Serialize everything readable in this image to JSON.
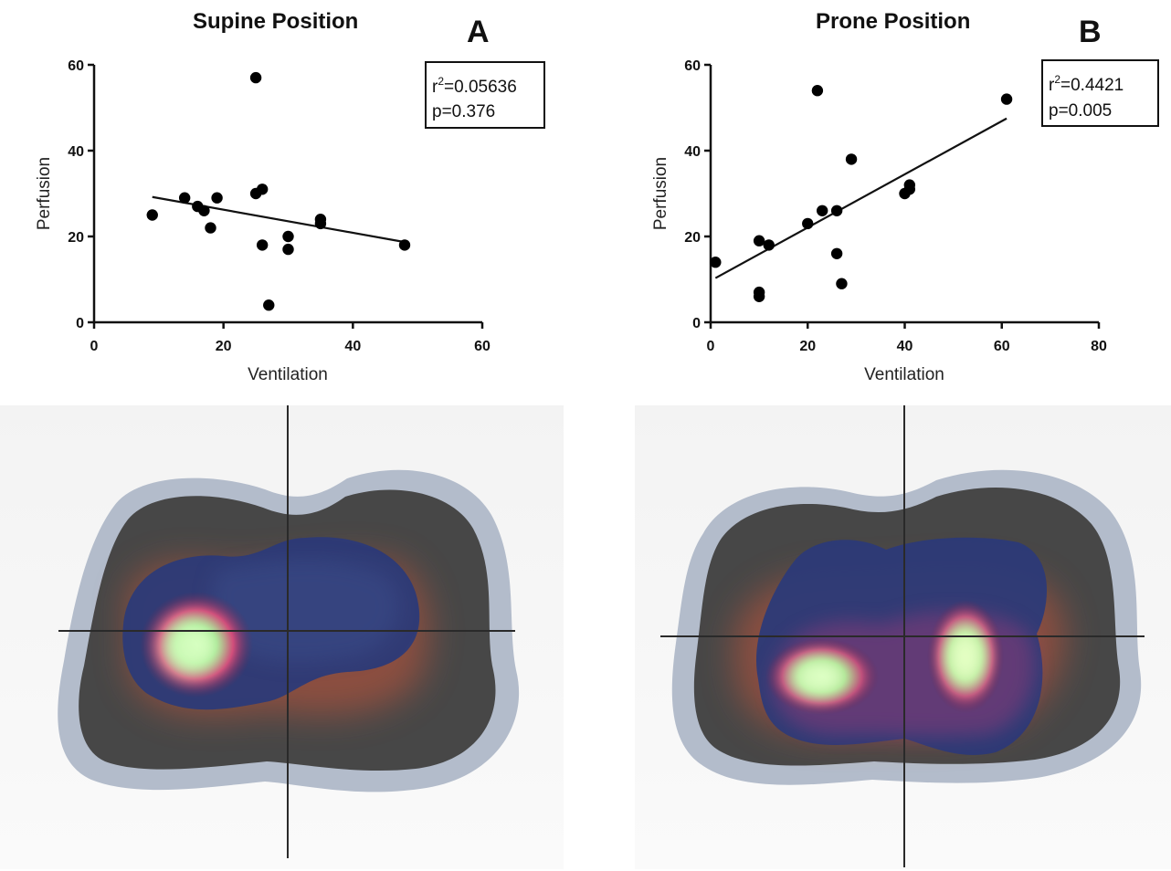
{
  "panels": [
    {
      "id": "A",
      "letter": "A",
      "chart_data": {
        "type": "scatter",
        "title": "Supine Position",
        "xlabel": "Ventilation",
        "ylabel": "Perfusion",
        "xlim": [
          0,
          60
        ],
        "ylim": [
          0,
          60
        ],
        "xticks": [
          0,
          20,
          40,
          60
        ],
        "yticks": [
          0,
          20,
          40,
          60
        ],
        "grid": false,
        "points": [
          {
            "x": 9,
            "y": 25
          },
          {
            "x": 14,
            "y": 29
          },
          {
            "x": 16,
            "y": 27
          },
          {
            "x": 17,
            "y": 26
          },
          {
            "x": 18,
            "y": 22
          },
          {
            "x": 19,
            "y": 29
          },
          {
            "x": 25,
            "y": 57
          },
          {
            "x": 25,
            "y": 30
          },
          {
            "x": 26,
            "y": 31
          },
          {
            "x": 26,
            "y": 18
          },
          {
            "x": 27,
            "y": 4
          },
          {
            "x": 30,
            "y": 20
          },
          {
            "x": 30,
            "y": 17
          },
          {
            "x": 35,
            "y": 24
          },
          {
            "x": 35,
            "y": 23
          },
          {
            "x": 48,
            "y": 18
          }
        ],
        "regression": {
          "x": [
            9,
            48
          ],
          "y": [
            29.2,
            18.7
          ]
        },
        "stats": {
          "r2_prefix": "r",
          "r2_exp": "2",
          "r2_value": "=0.05636",
          "p": "p=0.376"
        },
        "stats_placement": "top-right"
      }
    },
    {
      "id": "B",
      "letter": "B",
      "chart_data": {
        "type": "scatter",
        "title": "Prone Position",
        "xlabel": "Ventilation",
        "ylabel": "Perfusion",
        "xlim": [
          0,
          80
        ],
        "ylim": [
          0,
          60
        ],
        "xticks": [
          0,
          20,
          40,
          60,
          80
        ],
        "yticks": [
          0,
          20,
          40,
          60
        ],
        "grid": false,
        "points": [
          {
            "x": 1,
            "y": 14
          },
          {
            "x": 10,
            "y": 19
          },
          {
            "x": 10,
            "y": 7
          },
          {
            "x": 10,
            "y": 6
          },
          {
            "x": 12,
            "y": 18
          },
          {
            "x": 20,
            "y": 23
          },
          {
            "x": 22,
            "y": 54
          },
          {
            "x": 23,
            "y": 26
          },
          {
            "x": 26,
            "y": 26
          },
          {
            "x": 26,
            "y": 16
          },
          {
            "x": 27,
            "y": 9
          },
          {
            "x": 29,
            "y": 38
          },
          {
            "x": 40,
            "y": 30
          },
          {
            "x": 41,
            "y": 32
          },
          {
            "x": 41,
            "y": 31
          },
          {
            "x": 61,
            "y": 52
          }
        ],
        "regression": {
          "x": [
            1,
            61
          ],
          "y": [
            10.3,
            47.5
          ]
        },
        "stats": {
          "r2_prefix": "r",
          "r2_exp": "2",
          "r2_value": "=0.4421",
          "p": "p=0.005"
        },
        "stats_placement": "top-right"
      }
    }
  ],
  "colors": {
    "marker": "#000000",
    "axis": "#111111",
    "lung_outline": "#b3bccb",
    "lung_body": "#4a4a4a",
    "ventilation": "#2d3a7a",
    "perfusion_hot": "#e05a3a",
    "overlap": "#c8f5b0"
  }
}
